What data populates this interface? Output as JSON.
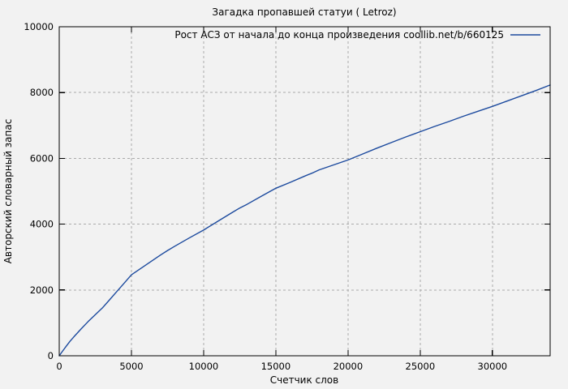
{
  "chart_data": {
    "type": "line",
    "title": "Загадка пропавшей статуи ( Letroz)",
    "xlabel": "Счетчик слов",
    "ylabel": "Авторский словарный запас",
    "xlim": [
      0,
      34000
    ],
    "ylim": [
      0,
      10000
    ],
    "xticks": [
      0,
      5000,
      10000,
      15000,
      20000,
      25000,
      30000
    ],
    "yticks": [
      0,
      2000,
      4000,
      6000,
      8000,
      10000
    ],
    "grid": true,
    "legend_position": "top-right-inside",
    "background_color": "#f2f2f2",
    "grid_color": "#ababab",
    "axis_color": "#000000",
    "line_color": "#1c4a9e",
    "series": [
      {
        "name": "Рост АСЗ от начала до конца произведения coollib.net/b/660125",
        "points": [
          [
            0,
            0
          ],
          [
            250,
            150
          ],
          [
            500,
            300
          ],
          [
            750,
            440
          ],
          [
            1000,
            570
          ],
          [
            1500,
            810
          ],
          [
            2000,
            1040
          ],
          [
            2500,
            1250
          ],
          [
            3000,
            1460
          ],
          [
            3500,
            1710
          ],
          [
            4000,
            1960
          ],
          [
            4500,
            2210
          ],
          [
            5000,
            2460
          ],
          [
            6000,
            2760
          ],
          [
            7000,
            3060
          ],
          [
            7500,
            3200
          ],
          [
            8000,
            3330
          ],
          [
            9000,
            3580
          ],
          [
            10000,
            3820
          ],
          [
            11000,
            4090
          ],
          [
            12000,
            4360
          ],
          [
            12500,
            4490
          ],
          [
            13000,
            4600
          ],
          [
            14000,
            4850
          ],
          [
            15000,
            5090
          ],
          [
            16000,
            5270
          ],
          [
            17000,
            5460
          ],
          [
            17500,
            5550
          ],
          [
            18000,
            5650
          ],
          [
            19000,
            5800
          ],
          [
            20000,
            5950
          ],
          [
            21000,
            6130
          ],
          [
            22000,
            6310
          ],
          [
            23000,
            6480
          ],
          [
            24000,
            6650
          ],
          [
            25000,
            6810
          ],
          [
            26000,
            6970
          ],
          [
            27000,
            7120
          ],
          [
            28000,
            7280
          ],
          [
            29000,
            7430
          ],
          [
            30000,
            7580
          ],
          [
            31000,
            7740
          ],
          [
            32000,
            7900
          ],
          [
            33000,
            8060
          ],
          [
            34000,
            8230
          ]
        ]
      }
    ]
  }
}
